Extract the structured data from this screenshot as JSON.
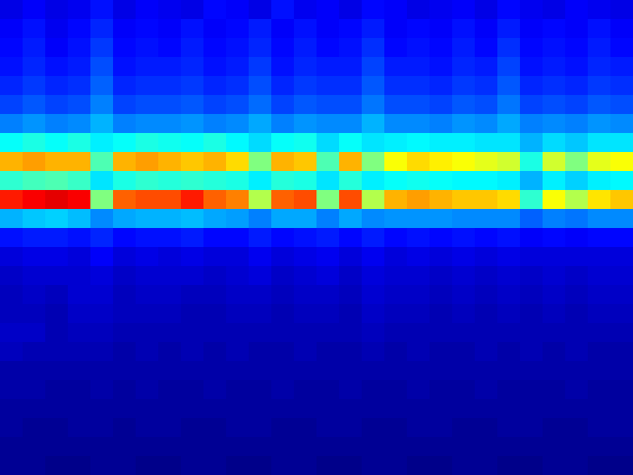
{
  "chart_data": {
    "type": "heatmap",
    "xlim": [
      0,
      28
    ],
    "ylim": [
      0,
      25
    ],
    "zlim": [
      0,
      1
    ],
    "tick_labels": false,
    "cells": [
      [
        0.1,
        0.12,
        0.1,
        0.11,
        0.14,
        0.1,
        0.12,
        0.11,
        0.1,
        0.13,
        0.12,
        0.1,
        0.14,
        0.11,
        0.12,
        0.1,
        0.13,
        0.12,
        0.1,
        0.11,
        0.12,
        0.1,
        0.13,
        0.11,
        0.1,
        0.12,
        0.11,
        0.1
      ],
      [
        0.12,
        0.14,
        0.11,
        0.13,
        0.16,
        0.12,
        0.13,
        0.12,
        0.14,
        0.12,
        0.13,
        0.15,
        0.12,
        0.14,
        0.12,
        0.13,
        0.15,
        0.12,
        0.13,
        0.12,
        0.14,
        0.12,
        0.15,
        0.12,
        0.13,
        0.12,
        0.14,
        0.12
      ],
      [
        0.13,
        0.15,
        0.12,
        0.14,
        0.18,
        0.13,
        0.14,
        0.13,
        0.15,
        0.13,
        0.14,
        0.16,
        0.13,
        0.15,
        0.13,
        0.14,
        0.17,
        0.13,
        0.14,
        0.13,
        0.15,
        0.13,
        0.17,
        0.13,
        0.14,
        0.13,
        0.15,
        0.13
      ],
      [
        0.14,
        0.16,
        0.14,
        0.15,
        0.2,
        0.14,
        0.15,
        0.15,
        0.16,
        0.14,
        0.15,
        0.18,
        0.14,
        0.16,
        0.15,
        0.15,
        0.19,
        0.15,
        0.15,
        0.14,
        0.16,
        0.15,
        0.19,
        0.14,
        0.15,
        0.14,
        0.16,
        0.15
      ],
      [
        0.16,
        0.18,
        0.16,
        0.17,
        0.22,
        0.16,
        0.17,
        0.17,
        0.18,
        0.16,
        0.17,
        0.2,
        0.16,
        0.18,
        0.17,
        0.17,
        0.21,
        0.17,
        0.17,
        0.16,
        0.18,
        0.17,
        0.21,
        0.16,
        0.17,
        0.16,
        0.18,
        0.17
      ],
      [
        0.19,
        0.21,
        0.19,
        0.2,
        0.25,
        0.19,
        0.2,
        0.2,
        0.21,
        0.19,
        0.2,
        0.23,
        0.19,
        0.21,
        0.2,
        0.2,
        0.24,
        0.2,
        0.2,
        0.19,
        0.21,
        0.2,
        0.24,
        0.19,
        0.2,
        0.19,
        0.21,
        0.2
      ],
      [
        0.25,
        0.27,
        0.25,
        0.26,
        0.3,
        0.25,
        0.26,
        0.26,
        0.27,
        0.25,
        0.26,
        0.29,
        0.25,
        0.27,
        0.26,
        0.26,
        0.3,
        0.26,
        0.26,
        0.25,
        0.27,
        0.26,
        0.29,
        0.25,
        0.26,
        0.25,
        0.27,
        0.26
      ],
      [
        0.38,
        0.4,
        0.38,
        0.4,
        0.36,
        0.38,
        0.4,
        0.39,
        0.38,
        0.4,
        0.37,
        0.34,
        0.38,
        0.39,
        0.34,
        0.38,
        0.35,
        0.36,
        0.37,
        0.36,
        0.36,
        0.35,
        0.35,
        0.3,
        0.34,
        0.32,
        0.35,
        0.35
      ],
      [
        0.7,
        0.72,
        0.7,
        0.7,
        0.45,
        0.7,
        0.72,
        0.7,
        0.68,
        0.7,
        0.66,
        0.5,
        0.7,
        0.68,
        0.45,
        0.7,
        0.5,
        0.62,
        0.66,
        0.64,
        0.62,
        0.6,
        0.58,
        0.4,
        0.58,
        0.5,
        0.6,
        0.62
      ],
      [
        0.42,
        0.44,
        0.45,
        0.43,
        0.35,
        0.4,
        0.42,
        0.41,
        0.42,
        0.41,
        0.4,
        0.36,
        0.41,
        0.4,
        0.35,
        0.41,
        0.36,
        0.38,
        0.39,
        0.38,
        0.37,
        0.37,
        0.36,
        0.3,
        0.36,
        0.33,
        0.36,
        0.37
      ],
      [
        0.85,
        0.88,
        0.9,
        0.88,
        0.5,
        0.78,
        0.8,
        0.8,
        0.85,
        0.78,
        0.75,
        0.55,
        0.78,
        0.8,
        0.5,
        0.8,
        0.55,
        0.7,
        0.72,
        0.7,
        0.68,
        0.68,
        0.66,
        0.42,
        0.62,
        0.55,
        0.65,
        0.68
      ],
      [
        0.3,
        0.32,
        0.33,
        0.31,
        0.26,
        0.29,
        0.3,
        0.3,
        0.31,
        0.29,
        0.28,
        0.25,
        0.29,
        0.29,
        0.25,
        0.29,
        0.26,
        0.27,
        0.27,
        0.27,
        0.26,
        0.26,
        0.26,
        0.22,
        0.25,
        0.24,
        0.26,
        0.26
      ],
      [
        0.14,
        0.15,
        0.15,
        0.14,
        0.16,
        0.13,
        0.14,
        0.14,
        0.15,
        0.13,
        0.13,
        0.15,
        0.13,
        0.14,
        0.15,
        0.13,
        0.15,
        0.13,
        0.14,
        0.13,
        0.14,
        0.13,
        0.14,
        0.12,
        0.13,
        0.12,
        0.13,
        0.13
      ],
      [
        0.09,
        0.1,
        0.1,
        0.09,
        0.12,
        0.09,
        0.1,
        0.09,
        0.1,
        0.09,
        0.09,
        0.11,
        0.09,
        0.1,
        0.11,
        0.09,
        0.11,
        0.09,
        0.1,
        0.09,
        0.1,
        0.09,
        0.1,
        0.09,
        0.09,
        0.09,
        0.09,
        0.09
      ],
      [
        0.07,
        0.08,
        0.08,
        0.08,
        0.09,
        0.07,
        0.08,
        0.08,
        0.08,
        0.07,
        0.08,
        0.09,
        0.07,
        0.08,
        0.09,
        0.07,
        0.09,
        0.08,
        0.08,
        0.07,
        0.08,
        0.07,
        0.08,
        0.07,
        0.08,
        0.07,
        0.08,
        0.08
      ],
      [
        0.06,
        0.07,
        0.06,
        0.08,
        0.08,
        0.06,
        0.07,
        0.07,
        0.06,
        0.06,
        0.07,
        0.07,
        0.06,
        0.07,
        0.07,
        0.06,
        0.08,
        0.07,
        0.07,
        0.06,
        0.07,
        0.06,
        0.07,
        0.06,
        0.07,
        0.06,
        0.07,
        0.07
      ],
      [
        0.06,
        0.06,
        0.05,
        0.07,
        0.07,
        0.06,
        0.06,
        0.06,
        0.05,
        0.05,
        0.06,
        0.06,
        0.05,
        0.06,
        0.06,
        0.05,
        0.07,
        0.06,
        0.06,
        0.05,
        0.06,
        0.05,
        0.06,
        0.05,
        0.06,
        0.05,
        0.06,
        0.06
      ],
      [
        0.07,
        0.07,
        0.05,
        0.06,
        0.06,
        0.05,
        0.05,
        0.05,
        0.05,
        0.05,
        0.05,
        0.05,
        0.05,
        0.05,
        0.05,
        0.05,
        0.06,
        0.05,
        0.05,
        0.05,
        0.05,
        0.05,
        0.05,
        0.05,
        0.05,
        0.05,
        0.05,
        0.05
      ],
      [
        0.06,
        0.05,
        0.05,
        0.05,
        0.05,
        0.04,
        0.05,
        0.04,
        0.05,
        0.04,
        0.05,
        0.04,
        0.04,
        0.05,
        0.04,
        0.04,
        0.05,
        0.04,
        0.05,
        0.04,
        0.04,
        0.05,
        0.04,
        0.05,
        0.04,
        0.05,
        0.04,
        0.04
      ],
      [
        0.04,
        0.04,
        0.04,
        0.04,
        0.04,
        0.04,
        0.04,
        0.04,
        0.04,
        0.04,
        0.04,
        0.04,
        0.04,
        0.04,
        0.04,
        0.04,
        0.04,
        0.04,
        0.04,
        0.04,
        0.04,
        0.04,
        0.04,
        0.04,
        0.04,
        0.04,
        0.04,
        0.04
      ],
      [
        0.04,
        0.04,
        0.03,
        0.03,
        0.04,
        0.03,
        0.04,
        0.03,
        0.03,
        0.04,
        0.03,
        0.03,
        0.04,
        0.03,
        0.03,
        0.04,
        0.03,
        0.03,
        0.04,
        0.03,
        0.03,
        0.04,
        0.03,
        0.03,
        0.03,
        0.04,
        0.03,
        0.03
      ],
      [
        0.03,
        0.03,
        0.03,
        0.03,
        0.03,
        0.03,
        0.03,
        0.03,
        0.03,
        0.03,
        0.03,
        0.03,
        0.03,
        0.03,
        0.03,
        0.03,
        0.03,
        0.03,
        0.03,
        0.03,
        0.03,
        0.03,
        0.03,
        0.03,
        0.03,
        0.03,
        0.03,
        0.03
      ],
      [
        0.03,
        0.02,
        0.02,
        0.03,
        0.03,
        0.02,
        0.03,
        0.03,
        0.02,
        0.02,
        0.03,
        0.03,
        0.02,
        0.02,
        0.03,
        0.03,
        0.02,
        0.02,
        0.03,
        0.03,
        0.02,
        0.02,
        0.03,
        0.03,
        0.02,
        0.02,
        0.03,
        0.03
      ],
      [
        0.02,
        0.02,
        0.02,
        0.02,
        0.02,
        0.02,
        0.02,
        0.02,
        0.02,
        0.02,
        0.02,
        0.02,
        0.02,
        0.02,
        0.02,
        0.02,
        0.02,
        0.02,
        0.02,
        0.02,
        0.02,
        0.02,
        0.02,
        0.02,
        0.02,
        0.02,
        0.02,
        0.02
      ],
      [
        0.02,
        0.02,
        0.01,
        0.01,
        0.02,
        0.02,
        0.01,
        0.01,
        0.02,
        0.02,
        0.01,
        0.01,
        0.02,
        0.02,
        0.01,
        0.01,
        0.02,
        0.02,
        0.01,
        0.01,
        0.02,
        0.02,
        0.01,
        0.01,
        0.02,
        0.02,
        0.01,
        0.01
      ]
    ]
  }
}
